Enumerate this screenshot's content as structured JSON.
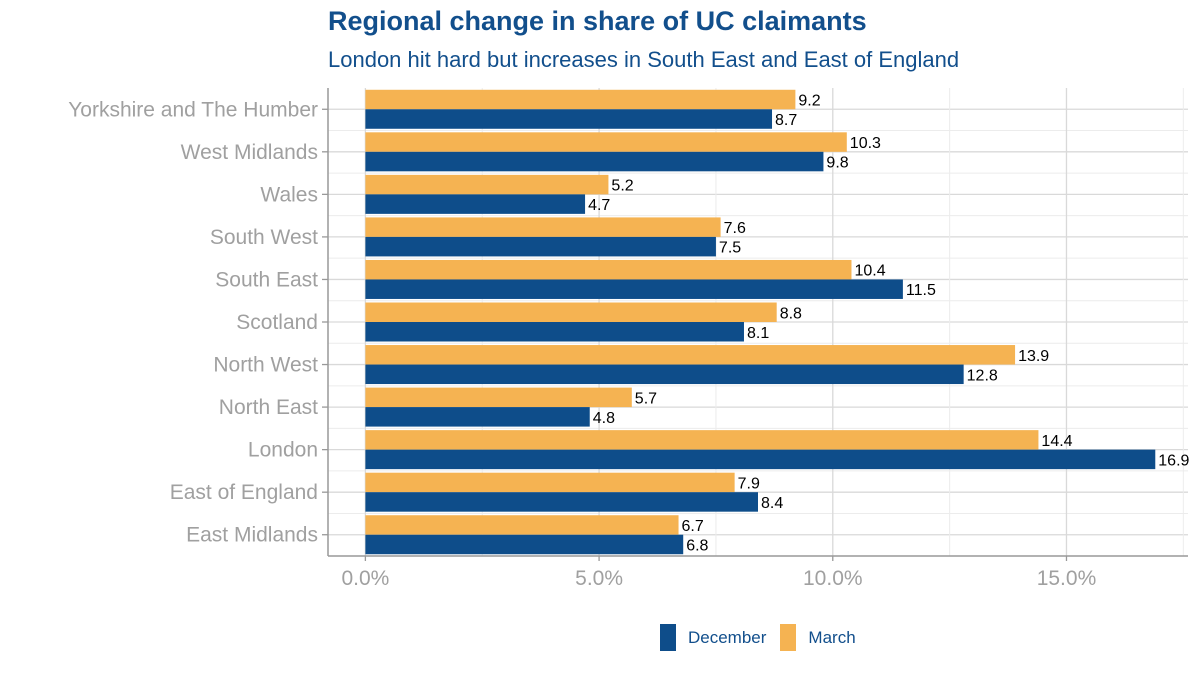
{
  "chart_data": {
    "type": "bar",
    "orientation": "horizontal",
    "title": "Regional change in share of UC claimants",
    "subtitle": "London hit hard but increases in South East and East of England",
    "categories": [
      "Yorkshire and The Humber",
      "West Midlands",
      "Wales",
      "South West",
      "South East",
      "Scotland",
      "North West",
      "North East",
      "London",
      "East of England",
      "East Midlands"
    ],
    "series": [
      {
        "name": "March",
        "color": "#f5b352",
        "values": [
          9.2,
          10.3,
          5.2,
          7.6,
          10.4,
          8.8,
          13.9,
          5.7,
          14.4,
          7.9,
          6.7
        ]
      },
      {
        "name": "December",
        "color": "#0e4d8a",
        "values": [
          8.7,
          9.8,
          4.7,
          7.5,
          11.5,
          8.1,
          12.8,
          4.8,
          16.9,
          8.4,
          6.8
        ]
      }
    ],
    "xticks": [
      "0.0%",
      "5.0%",
      "10.0%",
      "15.0%"
    ],
    "xtick_values": [
      0,
      5,
      10,
      15
    ],
    "xlim": [
      -0.8,
      17.6
    ],
    "grid": true,
    "legend_position": "bottom"
  },
  "legend": [
    {
      "label": "December",
      "color": "#0e4d8a"
    },
    {
      "label": "March",
      "color": "#f5b352"
    }
  ]
}
